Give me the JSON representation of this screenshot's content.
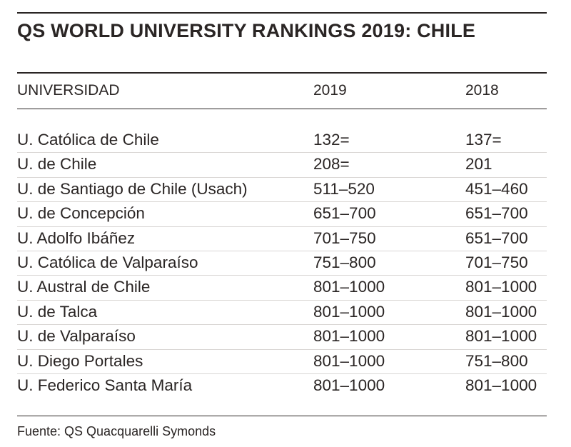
{
  "title": "QS WORLD UNIVERSITY RANKINGS 2019: CHILE",
  "header": {
    "university": "UNIVERSIDAD",
    "y2019": "2019",
    "y2018": "2018"
  },
  "rows": [
    {
      "name": "U. Católica de Chile",
      "r2019": "132=",
      "r2018": "137="
    },
    {
      "name": "U. de Chile",
      "r2019": "208=",
      "r2018": "201"
    },
    {
      "name": "U. de Santiago de Chile (Usach)",
      "r2019": "511–520",
      "r2018": "451–460"
    },
    {
      "name": "U. de Concepción",
      "r2019": "651–700",
      "r2018": "651–700"
    },
    {
      "name": "U. Adolfo Ibáñez",
      "r2019": "701–750",
      "r2018": "651–700"
    },
    {
      "name": "U. Católica de Valparaíso",
      "r2019": "751–800",
      "r2018": "701–750"
    },
    {
      "name": "U. Austral de Chile",
      "r2019": "801–1000",
      "r2018": "801–1000"
    },
    {
      "name": "U. de Talca",
      "r2019": "801–1000",
      "r2018": "801–1000"
    },
    {
      "name": "U. de Valparaíso",
      "r2019": "801–1000",
      "r2018": "801–1000"
    },
    {
      "name": "U. Diego Portales",
      "r2019": "801–1000",
      "r2018": "751–800"
    },
    {
      "name": "U. Federico Santa María",
      "r2019": "801–1000",
      "r2018": "801–1000"
    }
  ],
  "source": "Fuente: QS Quacquarelli Symonds"
}
